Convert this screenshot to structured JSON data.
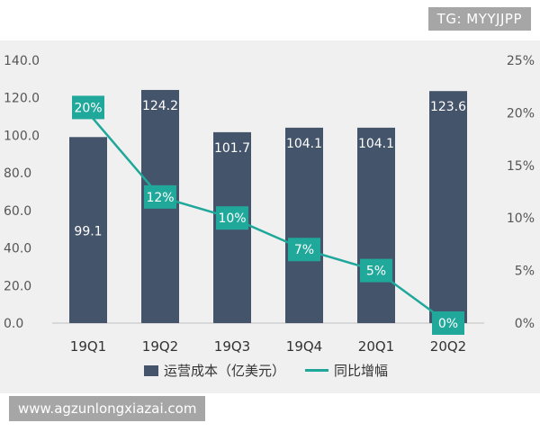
{
  "watermarks": {
    "top_right": "TG: MYYJJPP",
    "bottom_left": "www.agzunlongxiazai.com"
  },
  "legend": {
    "bar_label": "运营成本（亿美元）",
    "line_label": "同比增幅"
  },
  "colors": {
    "bar": "#44546a",
    "line": "#1fa89a",
    "marker_bg": "#20a99b",
    "axis_text": "#555555"
  },
  "chart_data": {
    "type": "bar",
    "title": "",
    "categories": [
      "19Q1",
      "19Q2",
      "19Q3",
      "19Q4",
      "20Q1",
      "20Q2"
    ],
    "series": [
      {
        "name": "运营成本（亿美元）",
        "type": "bar",
        "axis": "left",
        "values": [
          99.1,
          124.2,
          101.7,
          104.1,
          104.1,
          123.6
        ],
        "labels": [
          "99.1",
          "124.2",
          "101.7",
          "104.1",
          "104.1",
          "123.6"
        ]
      },
      {
        "name": "同比增幅",
        "type": "line",
        "axis": "right",
        "values": [
          20,
          12,
          10,
          7,
          5,
          0
        ],
        "labels": [
          "20%",
          "12%",
          "10%",
          "7%",
          "5%",
          "0%"
        ]
      }
    ],
    "left_axis": {
      "ylim": [
        0,
        140
      ],
      "ticks": [
        0,
        20,
        40,
        60,
        80,
        100,
        120,
        140
      ],
      "tick_labels": [
        "0.0",
        "20.0",
        "40.0",
        "60.0",
        "80.0",
        "100.0",
        "120.0",
        "140.0"
      ]
    },
    "right_axis": {
      "ylim": [
        0,
        25
      ],
      "ticks": [
        0,
        5,
        10,
        15,
        20,
        25
      ],
      "tick_labels": [
        "0%",
        "5%",
        "10%",
        "15%",
        "20%",
        "25%"
      ]
    },
    "grid": false,
    "legend_position": "bottom"
  }
}
